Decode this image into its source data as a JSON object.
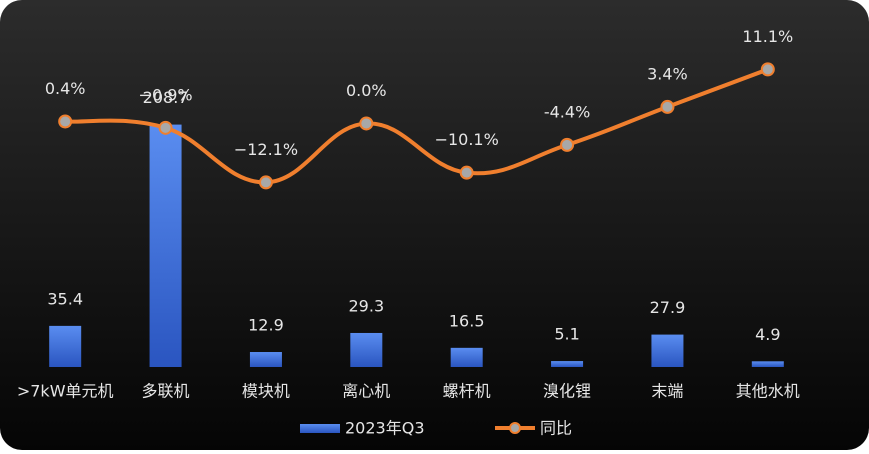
{
  "chart_data": {
    "type": "bar-line",
    "categories": [
      ">7kW单元机",
      "多联机",
      "模块机",
      "离心机",
      "螺杆机",
      "溴化锂",
      "末端",
      "其他水机"
    ],
    "series": [
      {
        "name": "2023年Q3",
        "type": "bar",
        "color": "#3f6fd8",
        "values": [
          35.4,
          208.7,
          12.9,
          29.3,
          16.5,
          5.1,
          27.9,
          4.9
        ]
      },
      {
        "name": "同比",
        "type": "line",
        "axis": "y2",
        "color": "#f07f2e",
        "values": [
          0.4,
          -0.9,
          -12.1,
          0.0,
          -10.1,
          -4.4,
          3.4,
          11.1
        ],
        "value_labels": [
          "0.4%",
          "−0.9%",
          "−12.1%",
          "0.0%",
          "−10.1%",
          "-4.4%",
          "3.4%",
          "11.1%"
        ]
      }
    ],
    "ylim": [
      0,
      260
    ],
    "y2lim": [
      -50,
      12
    ],
    "legend": "bottom"
  }
}
